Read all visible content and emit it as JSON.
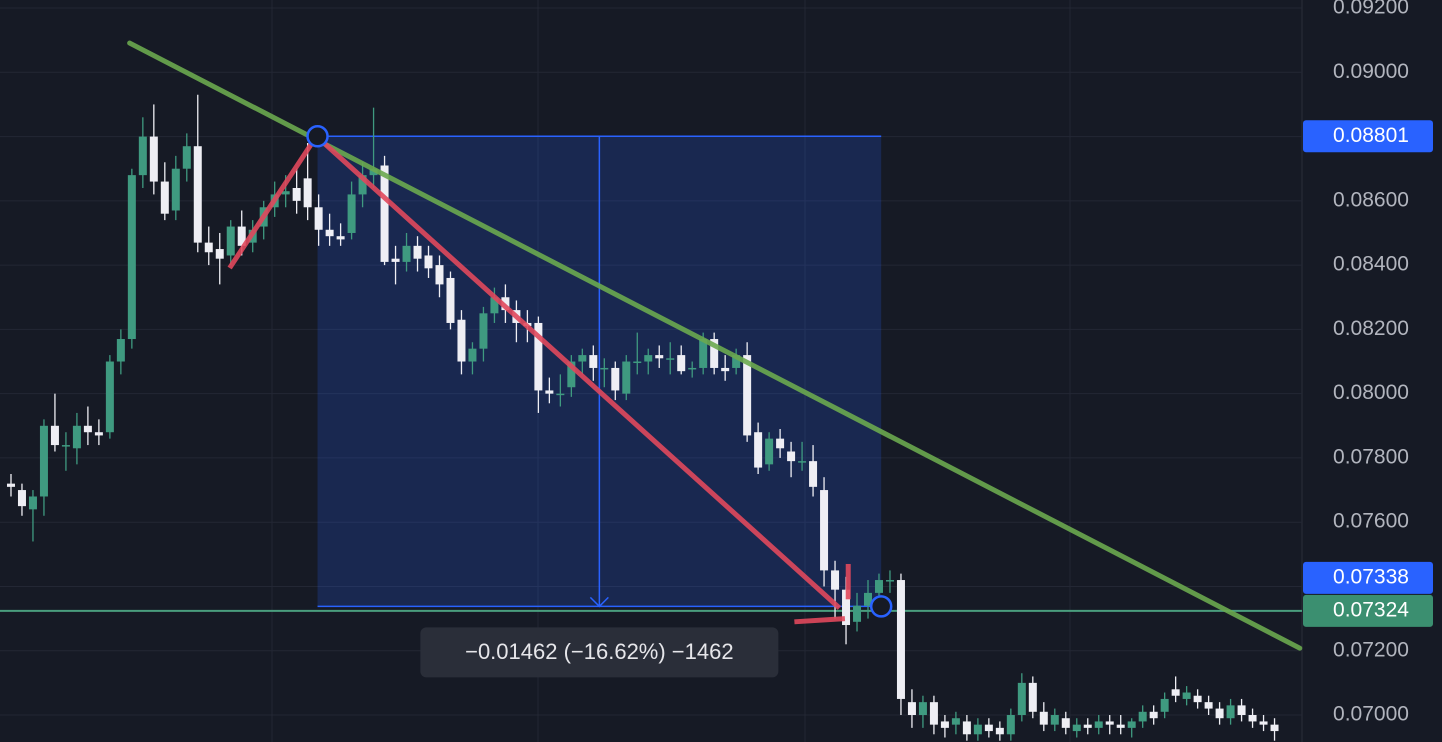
{
  "chart_data": {
    "type": "candlestick",
    "up_color": "#3f9a80",
    "down_color": "#eeeef4",
    "xlim": [
      -1,
      117.5
    ],
    "ylim": [
      0.06916,
      0.09225
    ],
    "yticks": [
      {
        "value": 0.092,
        "label": "0.09200"
      },
      {
        "value": 0.09,
        "label": "0.09000"
      },
      {
        "value": 0.088,
        "label": "0.08800"
      },
      {
        "value": 0.086,
        "label": "0.08600"
      },
      {
        "value": 0.084,
        "label": "0.08400"
      },
      {
        "value": 0.082,
        "label": "0.08200"
      },
      {
        "value": 0.08,
        "label": "0.08000"
      },
      {
        "value": 0.078,
        "label": "0.07800"
      },
      {
        "value": 0.076,
        "label": "0.07600"
      },
      {
        "value": 0.074,
        "label": "0.07400"
      },
      {
        "value": 0.072,
        "label": "0.07200"
      },
      {
        "value": 0.07,
        "label": "0.07000"
      }
    ],
    "ohlc": [
      [
        0.0772,
        0.0775,
        0.0768,
        0.0771
      ],
      [
        0.077,
        0.0772,
        0.0762,
        0.0765
      ],
      [
        0.0764,
        0.077,
        0.0754,
        0.0768
      ],
      [
        0.0768,
        0.0792,
        0.0762,
        0.079
      ],
      [
        0.079,
        0.08,
        0.0782,
        0.0784
      ],
      [
        0.0784,
        0.0788,
        0.0776,
        0.0784
      ],
      [
        0.0783,
        0.0794,
        0.0778,
        0.079
      ],
      [
        0.079,
        0.0796,
        0.0784,
        0.0788
      ],
      [
        0.0788,
        0.0792,
        0.0784,
        0.0787
      ],
      [
        0.0788,
        0.0812,
        0.0786,
        0.081
      ],
      [
        0.081,
        0.082,
        0.0806,
        0.0817
      ],
      [
        0.0817,
        0.087,
        0.0814,
        0.0868
      ],
      [
        0.0868,
        0.0886,
        0.0864,
        0.088
      ],
      [
        0.088,
        0.089,
        0.0862,
        0.0866
      ],
      [
        0.0866,
        0.0872,
        0.0854,
        0.0856
      ],
      [
        0.0857,
        0.0874,
        0.0854,
        0.087
      ],
      [
        0.087,
        0.0881,
        0.0866,
        0.0877
      ],
      [
        0.0877,
        0.0893,
        0.0844,
        0.0847
      ],
      [
        0.0847,
        0.0852,
        0.084,
        0.0844
      ],
      [
        0.0845,
        0.085,
        0.0834,
        0.0842
      ],
      [
        0.0843,
        0.0854,
        0.084,
        0.0852
      ],
      [
        0.0852,
        0.0857,
        0.0843,
        0.0846
      ],
      [
        0.0847,
        0.0854,
        0.0844,
        0.0851
      ],
      [
        0.0852,
        0.086,
        0.0848,
        0.0858
      ],
      [
        0.0858,
        0.0866,
        0.0855,
        0.0862
      ],
      [
        0.0862,
        0.0868,
        0.0858,
        0.0863
      ],
      [
        0.0864,
        0.087,
        0.0856,
        0.086
      ],
      [
        0.0867,
        0.0878,
        0.0854,
        0.0858
      ],
      [
        0.0858,
        0.0862,
        0.0846,
        0.0851
      ],
      [
        0.0851,
        0.0856,
        0.0846,
        0.0849
      ],
      [
        0.0849,
        0.0853,
        0.0846,
        0.0848
      ],
      [
        0.085,
        0.0866,
        0.0848,
        0.0862
      ],
      [
        0.0862,
        0.0872,
        0.0858,
        0.0868
      ],
      [
        0.0868,
        0.0889,
        0.0864,
        0.087
      ],
      [
        0.0871,
        0.0874,
        0.084,
        0.0841
      ],
      [
        0.0842,
        0.0846,
        0.0834,
        0.0841
      ],
      [
        0.0841,
        0.085,
        0.0838,
        0.0846
      ],
      [
        0.0846,
        0.0849,
        0.0838,
        0.0842
      ],
      [
        0.0843,
        0.0846,
        0.0836,
        0.0839
      ],
      [
        0.084,
        0.0843,
        0.083,
        0.0834
      ],
      [
        0.0836,
        0.0838,
        0.082,
        0.0822
      ],
      [
        0.0823,
        0.0826,
        0.0806,
        0.081
      ],
      [
        0.081,
        0.0816,
        0.0806,
        0.0814
      ],
      [
        0.0814,
        0.0827,
        0.081,
        0.0825
      ],
      [
        0.0825,
        0.0833,
        0.0822,
        0.083
      ],
      [
        0.083,
        0.0834,
        0.0822,
        0.0826
      ],
      [
        0.0826,
        0.0829,
        0.0816,
        0.0822
      ],
      [
        0.0822,
        0.0826,
        0.0816,
        0.0821
      ],
      [
        0.0822,
        0.0824,
        0.0794,
        0.0801
      ],
      [
        0.0801,
        0.0805,
        0.0797,
        0.08
      ],
      [
        0.08,
        0.0806,
        0.0796,
        0.08
      ],
      [
        0.0802,
        0.0812,
        0.0799,
        0.081
      ],
      [
        0.081,
        0.0814,
        0.0806,
        0.0812
      ],
      [
        0.0812,
        0.0815,
        0.0804,
        0.0808
      ],
      [
        0.0808,
        0.0811,
        0.0802,
        0.0808
      ],
      [
        0.0808,
        0.081,
        0.0798,
        0.0801
      ],
      [
        0.08,
        0.0812,
        0.0798,
        0.081
      ],
      [
        0.081,
        0.0819,
        0.0806,
        0.081
      ],
      [
        0.081,
        0.0814,
        0.0806,
        0.0812
      ],
      [
        0.0812,
        0.0815,
        0.0808,
        0.0811
      ],
      [
        0.0811,
        0.0816,
        0.0806,
        0.0811
      ],
      [
        0.0812,
        0.0815,
        0.0806,
        0.0807
      ],
      [
        0.0808,
        0.081,
        0.0805,
        0.0808
      ],
      [
        0.0808,
        0.0819,
        0.0806,
        0.0817
      ],
      [
        0.0817,
        0.0819,
        0.0806,
        0.0808
      ],
      [
        0.0808,
        0.0812,
        0.0804,
        0.0807
      ],
      [
        0.0808,
        0.0814,
        0.0806,
        0.0812
      ],
      [
        0.0812,
        0.0816,
        0.0785,
        0.0787
      ],
      [
        0.0788,
        0.0791,
        0.0775,
        0.0777
      ],
      [
        0.0778,
        0.0788,
        0.0776,
        0.0786
      ],
      [
        0.0786,
        0.0789,
        0.078,
        0.0783
      ],
      [
        0.0782,
        0.0785,
        0.0774,
        0.0779
      ],
      [
        0.0779,
        0.0785,
        0.0776,
        0.0779
      ],
      [
        0.0779,
        0.0784,
        0.0768,
        0.0771
      ],
      [
        0.077,
        0.0774,
        0.074,
        0.0745
      ],
      [
        0.0745,
        0.0748,
        0.073,
        0.0739
      ],
      [
        0.0739,
        0.0743,
        0.0722,
        0.0728
      ],
      [
        0.0729,
        0.0738,
        0.0726,
        0.0734
      ],
      [
        0.0734,
        0.0742,
        0.073,
        0.0738
      ],
      [
        0.0738,
        0.0744,
        0.0735,
        0.0742
      ],
      [
        0.0742,
        0.0745,
        0.0738,
        0.0742
      ],
      [
        0.0742,
        0.0744,
        0.07,
        0.0705
      ],
      [
        0.0704,
        0.0708,
        0.0696,
        0.07
      ],
      [
        0.07,
        0.0706,
        0.0696,
        0.0704
      ],
      [
        0.0704,
        0.0706,
        0.0694,
        0.0697
      ],
      [
        0.0698,
        0.07,
        0.0693,
        0.0696
      ],
      [
        0.0697,
        0.0701,
        0.0694,
        0.0699
      ],
      [
        0.0698,
        0.07,
        0.0692,
        0.0694
      ],
      [
        0.0694,
        0.0699,
        0.0692,
        0.0697
      ],
      [
        0.0697,
        0.0699,
        0.0693,
        0.0695
      ],
      [
        0.0696,
        0.0698,
        0.0692,
        0.0694
      ],
      [
        0.0694,
        0.0702,
        0.0692,
        0.07
      ],
      [
        0.07,
        0.0713,
        0.0698,
        0.071
      ],
      [
        0.071,
        0.0712,
        0.0699,
        0.0701
      ],
      [
        0.0701,
        0.0704,
        0.0695,
        0.0697
      ],
      [
        0.0697,
        0.0702,
        0.0695,
        0.07
      ],
      [
        0.0699,
        0.0701,
        0.0694,
        0.0696
      ],
      [
        0.0695,
        0.0699,
        0.0693,
        0.0697
      ],
      [
        0.0697,
        0.0699,
        0.0694,
        0.0696
      ],
      [
        0.0696,
        0.07,
        0.0694,
        0.0698
      ],
      [
        0.0698,
        0.07,
        0.0694,
        0.0697
      ],
      [
        0.0697,
        0.07,
        0.0694,
        0.0696
      ],
      [
        0.0696,
        0.0699,
        0.0693,
        0.0698
      ],
      [
        0.0698,
        0.0703,
        0.0696,
        0.0701
      ],
      [
        0.0701,
        0.0703,
        0.0697,
        0.0699
      ],
      [
        0.0701,
        0.0707,
        0.0699,
        0.0705
      ],
      [
        0.0708,
        0.0712,
        0.0704,
        0.0706
      ],
      [
        0.0705,
        0.0709,
        0.0703,
        0.0707
      ],
      [
        0.0706,
        0.0708,
        0.0702,
        0.0704
      ],
      [
        0.0704,
        0.0706,
        0.07,
        0.0702
      ],
      [
        0.0702,
        0.0704,
        0.0697,
        0.0699
      ],
      [
        0.0699,
        0.0705,
        0.0697,
        0.0703
      ],
      [
        0.0703,
        0.0705,
        0.0698,
        0.07
      ],
      [
        0.07,
        0.0702,
        0.0696,
        0.0698
      ],
      [
        0.0698,
        0.07,
        0.0695,
        0.0697
      ],
      [
        0.0697,
        0.0699,
        0.0692,
        0.0695
      ]
    ],
    "trend_line": {
      "color": "#6aa84f",
      "points": [
        [
          10.8,
          0.09091
        ],
        [
          117.3,
          0.07208
        ]
      ]
    },
    "zigzag": {
      "color": "#e0485c",
      "pieces": [
        [
          [
            19.9,
            0.08391
          ],
          [
            27.8,
            0.08801
          ],
          [
            75.4,
            0.07333
          ]
        ],
        [
          [
            76.2,
            0.0747
          ],
          [
            76.2,
            0.0736
          ]
        ],
        [
          [
            71.3,
            0.0729
          ],
          [
            75.9,
            0.073
          ]
        ]
      ]
    },
    "range": {
      "color": "#2962ff",
      "x": [
        27.9,
        79.2
      ],
      "y": [
        0.08801,
        0.07338
      ],
      "label": "−0.01462 (−16.62%) −1462"
    },
    "hline": {
      "value": 0.07324,
      "color": "#4a9e7e"
    },
    "price_tags": [
      {
        "value": 0.08801,
        "color": "#2962ff"
      },
      {
        "value": 0.07338,
        "color": "#2962ff"
      },
      {
        "value": 0.07324,
        "color": "#3b8f70"
      }
    ]
  }
}
